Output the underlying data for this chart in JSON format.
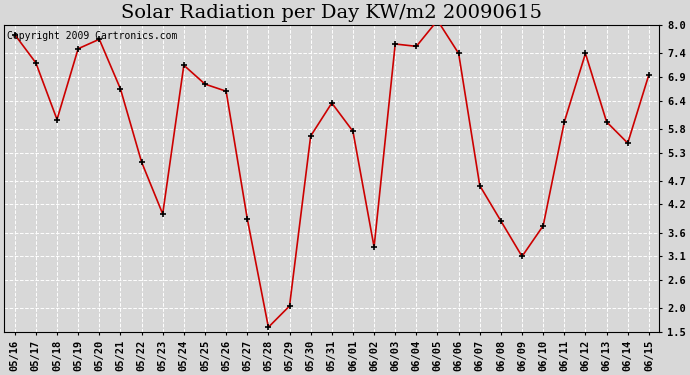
{
  "title": "Solar Radiation per Day KW/m2 20090615",
  "copyright": "Copyright 2009 Cartronics.com",
  "dates": [
    "05/16",
    "05/17",
    "05/18",
    "05/19",
    "05/20",
    "05/21",
    "05/22",
    "05/23",
    "05/24",
    "05/25",
    "05/26",
    "05/27",
    "05/28",
    "05/29",
    "05/30",
    "05/31",
    "06/01",
    "06/02",
    "06/03",
    "06/04",
    "06/05",
    "06/06",
    "06/07",
    "06/08",
    "06/09",
    "06/10",
    "06/11",
    "06/12",
    "06/13",
    "06/14",
    "06/15"
  ],
  "values": [
    7.8,
    7.2,
    6.0,
    7.5,
    7.7,
    6.65,
    5.1,
    4.0,
    7.15,
    6.75,
    6.6,
    3.9,
    1.6,
    2.05,
    5.65,
    6.35,
    5.75,
    3.3,
    7.6,
    7.55,
    8.1,
    7.4,
    4.6,
    3.85,
    3.1,
    3.75,
    5.95,
    7.4,
    5.95,
    5.5,
    6.95
  ],
  "line_color": "#cc0000",
  "marker_color": "#000000",
  "bg_color": "#d8d8d8",
  "plot_bg_color": "#d8d8d8",
  "grid_color": "#ffffff",
  "ylim_min": 1.5,
  "ylim_max": 8.0,
  "yticks": [
    1.5,
    2.0,
    2.6,
    3.1,
    3.6,
    4.2,
    4.7,
    5.3,
    5.8,
    6.4,
    6.9,
    7.4,
    8.0
  ],
  "title_fontsize": 14,
  "tick_fontsize": 7.5,
  "copyright_fontsize": 7
}
